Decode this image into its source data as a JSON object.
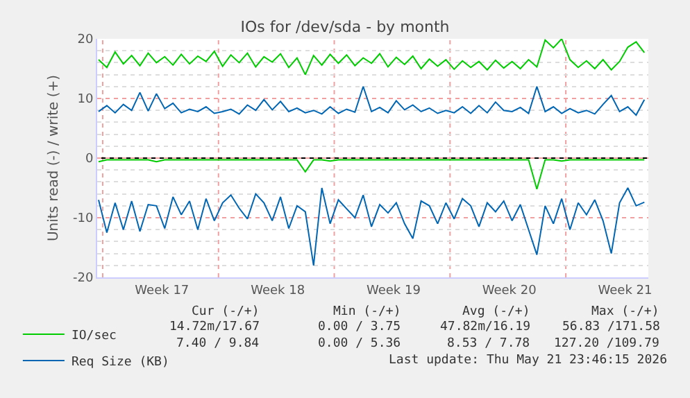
{
  "chart_data": {
    "type": "line",
    "title": "IOs for /dev/sda - by month",
    "ylabel": "Units read (-) / write (+)",
    "x": [
      "2026-04-18T18:00",
      "2026-04-19T06:00",
      "2026-04-19T18:00",
      "2026-04-20T06:00",
      "2026-04-20T18:00",
      "2026-04-21T06:00",
      "2026-04-21T18:00",
      "2026-04-22T06:00",
      "2026-04-22T18:00",
      "2026-04-23T06:00",
      "2026-04-23T18:00",
      "2026-04-24T06:00",
      "2026-04-24T18:00",
      "2026-04-25T06:00",
      "2026-04-25T18:00",
      "2026-04-26T06:00",
      "2026-04-26T18:00",
      "2026-04-27T06:00",
      "2026-04-27T18:00",
      "2026-04-28T06:00",
      "2026-04-28T18:00",
      "2026-04-29T06:00",
      "2026-04-29T18:00",
      "2026-04-30T06:00",
      "2026-04-30T18:00",
      "2026-05-01T06:00",
      "2026-05-01T18:00",
      "2026-05-02T06:00",
      "2026-05-02T18:00",
      "2026-05-03T06:00",
      "2026-05-03T18:00",
      "2026-05-04T06:00",
      "2026-05-04T18:00",
      "2026-05-05T06:00",
      "2026-05-05T18:00",
      "2026-05-06T06:00",
      "2026-05-06T18:00",
      "2026-05-07T06:00",
      "2026-05-07T18:00",
      "2026-05-08T06:00",
      "2026-05-08T18:00",
      "2026-05-09T06:00",
      "2026-05-09T18:00",
      "2026-05-10T06:00",
      "2026-05-10T18:00",
      "2026-05-11T06:00",
      "2026-05-11T18:00",
      "2026-05-12T06:00",
      "2026-05-12T18:00",
      "2026-05-13T06:00",
      "2026-05-13T18:00",
      "2026-05-14T06:00",
      "2026-05-14T18:00",
      "2026-05-15T06:00",
      "2026-05-15T18:00",
      "2026-05-16T06:00",
      "2026-05-16T18:00",
      "2026-05-17T06:00",
      "2026-05-17T18:00",
      "2026-05-18T06:00",
      "2026-05-18T18:00",
      "2026-05-19T06:00",
      "2026-05-19T18:00",
      "2026-05-20T06:00",
      "2026-05-20T18:00",
      "2026-05-21T06:00",
      "2026-05-21T18:00"
    ],
    "series": [
      {
        "color": "#00cc00",
        "values": [
          -0.6,
          -0.3,
          -0.3,
          -0.3,
          -0.3,
          -0.3,
          -0.3,
          -0.6,
          -0.3,
          -0.3,
          -0.3,
          -0.3,
          -0.3,
          -0.3,
          -0.3,
          -0.3,
          -0.3,
          -0.3,
          -0.3,
          -0.3,
          -0.3,
          -0.3,
          -0.3,
          -0.3,
          -0.3,
          -2.3,
          -0.3,
          -0.3,
          -0.5,
          -0.3,
          -0.3,
          -0.3,
          -0.3,
          -0.3,
          -0.3,
          -0.3,
          -0.3,
          -0.3,
          -0.3,
          -0.3,
          -0.3,
          -0.3,
          -0.3,
          -0.3,
          -0.3,
          -0.3,
          -0.3,
          -0.3,
          -0.3,
          -0.3,
          -0.3,
          -0.3,
          -0.3,
          -5.2,
          -0.3,
          -0.3,
          -0.5,
          -0.3,
          -0.3,
          -0.3,
          -0.3,
          -0.3,
          -0.3,
          -0.3,
          -0.3,
          -0.3,
          -0.3
        ]
      },
      {
        "name": "IO/sec",
        "color": "#00cc00",
        "values": [
          16.5,
          15.2,
          17.8,
          15.8,
          17.2,
          15.5,
          17.6,
          16.0,
          17.0,
          15.6,
          17.4,
          15.8,
          17.1,
          16.2,
          17.9,
          15.4,
          17.3,
          16.0,
          17.6,
          15.3,
          17.0,
          16.1,
          17.5,
          15.2,
          16.8,
          14.0,
          17.2,
          15.6,
          17.4,
          15.9,
          17.3,
          15.5,
          16.8,
          15.9,
          17.5,
          15.3,
          16.9,
          15.7,
          17.1,
          15.0,
          16.6,
          15.4,
          16.5,
          14.9,
          16.3,
          15.2,
          16.2,
          14.8,
          16.4,
          15.1,
          16.2,
          15.0,
          16.5,
          15.3,
          19.8,
          18.5,
          20.0,
          16.5,
          15.2,
          16.3,
          15.0,
          16.5,
          14.8,
          16.2,
          18.6,
          19.5,
          17.7
        ]
      },
      {
        "color": "#0066b3",
        "values": [
          -7.0,
          -12.5,
          -7.5,
          -12.0,
          -7.2,
          -12.3,
          -7.8,
          -8.0,
          -11.8,
          -6.5,
          -9.5,
          -7.2,
          -12.0,
          -6.8,
          -10.5,
          -7.5,
          -6.2,
          -8.4,
          -10.2,
          -6.0,
          -7.5,
          -10.5,
          -6.5,
          -11.8,
          -8.0,
          -9.0,
          -18.0,
          -5.0,
          -11.0,
          -7.0,
          -8.5,
          -10.0,
          -6.2,
          -11.5,
          -7.8,
          -9.2,
          -7.5,
          -11.0,
          -13.5,
          -7.2,
          -8.0,
          -11.0,
          -7.5,
          -10.2,
          -6.8,
          -8.0,
          -11.5,
          -7.5,
          -9.0,
          -7.2,
          -10.5,
          -7.8,
          -12.0,
          -16.2,
          -8.0,
          -11.0,
          -6.8,
          -12.0,
          -7.5,
          -9.5,
          -7.0,
          -10.5,
          -16.0,
          -7.5,
          -5.0,
          -8.0,
          -7.4
        ]
      },
      {
        "name": "Req Size (KB)",
        "color": "#0066b3",
        "values": [
          7.8,
          8.8,
          7.6,
          9.0,
          8.0,
          11.0,
          7.9,
          10.8,
          8.3,
          9.2,
          7.6,
          8.2,
          7.8,
          8.6,
          7.5,
          7.8,
          8.2,
          7.4,
          8.9,
          8.0,
          9.8,
          8.1,
          9.5,
          7.8,
          8.4,
          7.6,
          8.0,
          7.4,
          8.6,
          7.5,
          8.2,
          7.7,
          12.0,
          7.8,
          8.5,
          7.6,
          9.6,
          8.1,
          8.9,
          7.8,
          8.4,
          7.5,
          8.0,
          7.6,
          8.6,
          7.5,
          8.8,
          7.6,
          9.4,
          8.0,
          7.8,
          8.5,
          7.5,
          12.0,
          7.8,
          8.6,
          7.5,
          8.3,
          7.6,
          8.0,
          7.4,
          9.0,
          10.5,
          7.8,
          8.6,
          7.2,
          9.8
        ]
      }
    ],
    "xlim": [
      "2026-04-18T16:00",
      "2026-05-21T23:46"
    ],
    "xticks": [
      {
        "value": "2026-04-19",
        "label": null
      },
      {
        "value": "2026-04-22T14:00",
        "label": "Week 17"
      },
      {
        "value": "2026-04-26",
        "label": null
      },
      {
        "value": "2026-04-29T14:00",
        "label": "Week 18"
      },
      {
        "value": "2026-05-03",
        "label": null
      },
      {
        "value": "2026-05-06T14:00",
        "label": "Week 19"
      },
      {
        "value": "2026-05-10",
        "label": null
      },
      {
        "value": "2026-05-13T14:00",
        "label": "Week 20"
      },
      {
        "value": "2026-05-17",
        "label": null
      },
      {
        "value": "2026-05-20T14:00",
        "label": "Week 21"
      }
    ],
    "ylim": [
      -20,
      20
    ],
    "yticks": [
      -20,
      -10,
      0,
      10,
      20
    ],
    "grid": true,
    "legend": "bottom left",
    "marker": "none",
    "line_style": "solid",
    "ref_lines": [
      {
        "axis": "y",
        "value": 0,
        "color": "#000000"
      }
    ],
    "annotations": [
      "Cur (-/+)",
      "Min (-/+)",
      "Avg (-/+)",
      "Max (-/+)",
      "14.72m/17.67",
      "0.00 / 3.75",
      "47.82m/16.19",
      "56.83 /171.58",
      "7.40 / 9.84",
      "0.00 / 5.36",
      "8.53 / 7.78",
      "127.20 /109.79",
      "Last update: Thu May 21 23:46:15 2026"
    ]
  }
}
